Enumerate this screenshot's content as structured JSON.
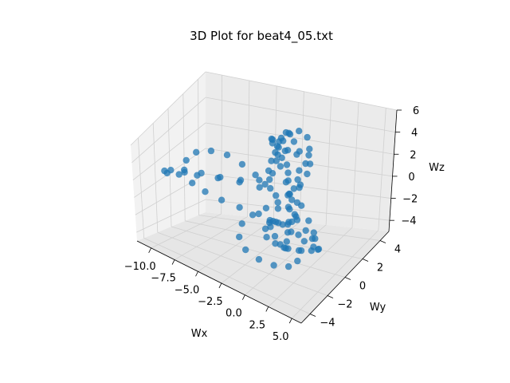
{
  "chart_data": {
    "type": "scatter",
    "projection": "3d",
    "title": "3D Plot for beat4_05.txt",
    "xlabel": "Wx",
    "ylabel": "Wy",
    "zlabel": "Wz",
    "xlim": [
      -11.5,
      6.0
    ],
    "ylim": [
      -5.0,
      5.0
    ],
    "zlim": [
      -5.0,
      6.0
    ],
    "xticks": [
      "−10.0",
      "−7.5",
      "−5.0",
      "−2.5",
      "0.0",
      "2.5",
      "5.0"
    ],
    "xtick_values": [
      -10,
      -7.5,
      -5,
      -2.5,
      0,
      2.5,
      5
    ],
    "yticks": [
      "−4",
      "−2",
      "0",
      "2",
      "4"
    ],
    "ytick_values": [
      -4,
      -2,
      0,
      2,
      4
    ],
    "zticks": [
      "−4",
      "−2",
      "0",
      "2",
      "4",
      "6"
    ],
    "ztick_values": [
      -4,
      -2,
      0,
      2,
      4,
      6
    ],
    "grid": true,
    "color": "#1f77b4",
    "series": [
      {
        "points": [
          [
            0.0,
            -0.5,
            5.5
          ],
          [
            0.8,
            -1.2,
            5.2
          ],
          [
            1.5,
            -1.8,
            4.5
          ],
          [
            2.0,
            -2.2,
            3.5
          ],
          [
            2.2,
            -2.3,
            2.5
          ],
          [
            2.0,
            -2.0,
            1.0
          ],
          [
            1.5,
            -1.5,
            -0.5
          ],
          [
            1.0,
            -1.0,
            -1.8
          ],
          [
            0.5,
            -0.5,
            -3.0
          ],
          [
            0.0,
            0.0,
            -4.0
          ],
          [
            -0.8,
            0.8,
            -4.6
          ],
          [
            -1.8,
            1.6,
            -5.0
          ],
          [
            -2.8,
            2.2,
            -4.8
          ],
          [
            -3.4,
            2.4,
            -4.2
          ],
          [
            -3.2,
            2.0,
            -3.6
          ],
          [
            -2.4,
            1.4,
            -3.0
          ],
          [
            -1.4,
            0.8,
            -2.6
          ],
          [
            -0.5,
            0.2,
            -2.2
          ],
          [
            0.5,
            -0.4,
            -1.6
          ],
          [
            1.4,
            -1.0,
            -0.8
          ],
          [
            2.0,
            -1.4,
            0.2
          ],
          [
            2.4,
            -1.6,
            1.4
          ],
          [
            2.5,
            -1.5,
            2.6
          ],
          [
            2.2,
            -1.2,
            3.8
          ],
          [
            1.6,
            -0.8,
            4.8
          ],
          [
            0.8,
            -0.2,
            5.4
          ],
          [
            0.0,
            0.3,
            5.6
          ],
          [
            -0.8,
            0.8,
            5.3
          ],
          [
            -1.4,
            1.0,
            4.6
          ],
          [
            -1.8,
            1.2,
            3.6
          ],
          [
            -2.0,
            1.2,
            2.4
          ],
          [
            -2.2,
            1.0,
            1.4
          ],
          [
            -3.0,
            0.4,
            1.0
          ],
          [
            -4.2,
            -0.4,
            1.2
          ],
          [
            -5.6,
            -1.2,
            1.6
          ],
          [
            -7.0,
            -1.8,
            2.0
          ],
          [
            -8.4,
            -2.2,
            2.2
          ],
          [
            -9.6,
            -2.4,
            2.0
          ],
          [
            -10.4,
            -2.2,
            1.6
          ],
          [
            -10.6,
            -1.6,
            1.0
          ],
          [
            -10.0,
            -0.8,
            0.6
          ],
          [
            -8.8,
            0.0,
            0.4
          ],
          [
            -7.2,
            0.6,
            0.2
          ],
          [
            -5.4,
            1.0,
            0.0
          ],
          [
            -3.6,
            1.2,
            -0.2
          ],
          [
            -2.0,
            1.2,
            -0.6
          ],
          [
            -0.6,
            1.0,
            -1.2
          ],
          [
            0.6,
            0.6,
            -1.8
          ],
          [
            1.8,
            0.2,
            -2.2
          ],
          [
            2.8,
            -0.2,
            -2.4
          ],
          [
            3.4,
            -0.6,
            -2.0
          ],
          [
            3.6,
            -1.0,
            -1.2
          ],
          [
            3.4,
            -1.4,
            0.0
          ],
          [
            3.0,
            -1.8,
            1.4
          ],
          [
            2.4,
            -2.0,
            2.8
          ],
          [
            1.8,
            -2.0,
            4.0
          ],
          [
            1.0,
            -1.8,
            5.0
          ],
          [
            0.2,
            -1.4,
            5.6
          ],
          [
            -0.6,
            -1.0,
            5.8
          ],
          [
            -1.2,
            -0.4,
            5.4
          ],
          [
            -1.6,
            0.2,
            4.6
          ],
          [
            -1.8,
            0.8,
            3.4
          ],
          [
            -1.6,
            1.2,
            2.0
          ],
          [
            -1.2,
            1.4,
            0.6
          ],
          [
            -0.6,
            1.4,
            -0.8
          ],
          [
            0.0,
            1.2,
            -2.0
          ],
          [
            0.6,
            0.8,
            -3.2
          ],
          [
            1.0,
            0.4,
            -4.2
          ],
          [
            1.2,
            0.0,
            -4.8
          ],
          [
            0.8,
            -0.6,
            -5.0
          ],
          [
            -0.2,
            -1.2,
            -4.8
          ],
          [
            -1.4,
            -1.6,
            -4.4
          ],
          [
            -2.6,
            -1.8,
            -3.8
          ],
          [
            -3.4,
            -1.6,
            -3.0
          ],
          [
            -3.6,
            -1.0,
            -2.2
          ],
          [
            -3.0,
            -0.4,
            -1.6
          ],
          [
            -2.0,
            0.0,
            -1.0
          ],
          [
            -1.0,
            0.2,
            -0.4
          ],
          [
            0.0,
            0.4,
            0.4
          ],
          [
            1.0,
            0.4,
            1.4
          ],
          [
            1.8,
            0.2,
            2.6
          ],
          [
            2.4,
            -0.2,
            3.8
          ],
          [
            2.6,
            -0.6,
            4.8
          ],
          [
            2.2,
            -1.2,
            5.4
          ],
          [
            1.4,
            -1.6,
            5.6
          ],
          [
            0.6,
            -1.8,
            5.2
          ],
          [
            -0.2,
            -1.6,
            4.4
          ],
          [
            -0.8,
            -1.2,
            3.2
          ],
          [
            -1.2,
            -0.6,
            2.0
          ],
          [
            -1.6,
            0.0,
            0.8
          ],
          [
            -2.6,
            0.6,
            0.6
          ],
          [
            -4.0,
            1.2,
            0.8
          ],
          [
            -5.6,
            1.6,
            1.2
          ],
          [
            -7.2,
            1.8,
            1.6
          ],
          [
            -8.6,
            1.6,
            1.8
          ],
          [
            -9.6,
            1.0,
            1.8
          ],
          [
            -10.0,
            0.2,
            1.4
          ],
          [
            -9.6,
            -0.6,
            0.8
          ],
          [
            -8.4,
            -1.2,
            0.4
          ],
          [
            -6.8,
            -1.6,
            0.2
          ],
          [
            -5.0,
            -1.8,
            0.0
          ],
          [
            -3.2,
            -1.8,
            -0.2
          ],
          [
            -1.6,
            -1.4,
            -0.6
          ],
          [
            -0.2,
            -1.0,
            -1.2
          ],
          [
            1.0,
            -0.6,
            -2.0
          ],
          [
            2.0,
            -0.2,
            -2.8
          ],
          [
            2.6,
            0.2,
            -3.4
          ],
          [
            2.8,
            0.6,
            -3.8
          ],
          [
            2.4,
            1.0,
            -4.2
          ],
          [
            1.6,
            1.2,
            -4.6
          ],
          [
            0.6,
            1.2,
            -4.8
          ],
          [
            -0.4,
            0.8,
            -4.6
          ],
          [
            -1.2,
            0.2,
            -4.0
          ],
          [
            -1.6,
            -0.4,
            -3.2
          ],
          [
            -1.4,
            -0.8,
            -2.2
          ],
          [
            -0.8,
            -1.0,
            -1.2
          ],
          [
            0.0,
            -1.0,
            0.0
          ],
          [
            0.8,
            -0.8,
            1.2
          ],
          [
            1.4,
            -0.4,
            2.4
          ],
          [
            1.8,
            0.0,
            3.6
          ],
          [
            1.8,
            0.4,
            4.6
          ],
          [
            1.4,
            0.6,
            5.4
          ],
          [
            0.6,
            0.6,
            5.8
          ],
          [
            -0.2,
            0.4,
            5.6
          ],
          [
            -0.8,
            0.0,
            5.0
          ]
        ]
      }
    ]
  }
}
